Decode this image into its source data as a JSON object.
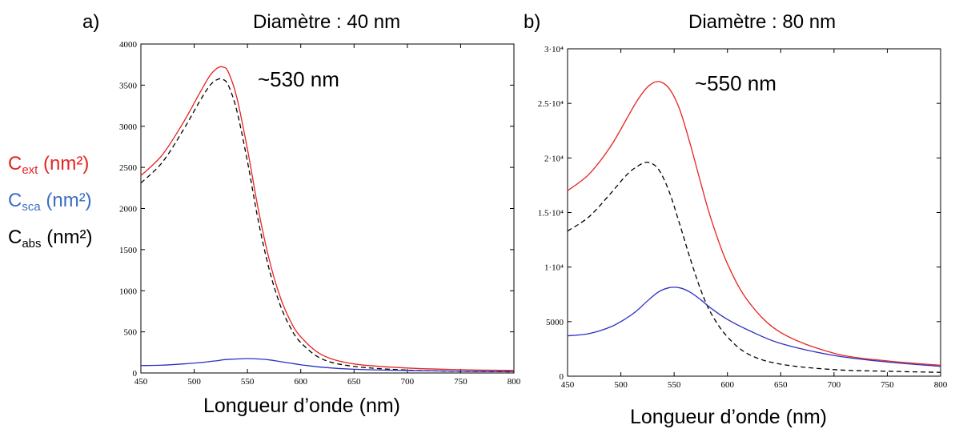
{
  "legend": [
    {
      "symbol": "C",
      "sub": "ext",
      "unit": " (nm²)",
      "color": "#e52421"
    },
    {
      "symbol": "C",
      "sub": "sca",
      "unit": " (nm²)",
      "color": "#3a6fc4"
    },
    {
      "symbol": "C",
      "sub": "abs",
      "unit": " (nm²)",
      "color": "#000000"
    }
  ],
  "panels": {
    "a": {
      "letter": "a)",
      "title": "Diamètre : 40 nm",
      "peak_label": "~530 nm",
      "xlabel": "Longueur d’onde (nm)"
    },
    "b": {
      "letter": "b)",
      "title": "Diamètre : 80 nm",
      "peak_label": "~550 nm",
      "xlabel": "Longueur d’onde (nm)"
    }
  },
  "chart_data": [
    {
      "type": "line",
      "title": "Diamètre : 40 nm",
      "xlabel": "Longueur d’onde (nm)",
      "xlim": [
        450,
        800
      ],
      "ylim": [
        0,
        4000
      ],
      "xticks": [
        450,
        500,
        550,
        600,
        650,
        700,
        750,
        800
      ],
      "yticks": [
        0,
        500,
        1000,
        1500,
        2000,
        2500,
        3000,
        3500,
        4000
      ],
      "ytick_labels": [
        "0",
        "500",
        "1000",
        "1500",
        "2000",
        "2500",
        "3000",
        "3500",
        "4000"
      ],
      "annotation": "~530 nm",
      "x": [
        450,
        470,
        490,
        505,
        515,
        522,
        527,
        532,
        540,
        550,
        560,
        570,
        580,
        590,
        600,
        620,
        650,
        700,
        750,
        800
      ],
      "series": [
        {
          "name": "C_ext",
          "color": "#e52421",
          "dash": "none",
          "values": [
            2400,
            2650,
            3050,
            3400,
            3620,
            3710,
            3720,
            3660,
            3350,
            2720,
            2000,
            1400,
            950,
            640,
            440,
            220,
            110,
            60,
            40,
            30
          ]
        },
        {
          "name": "C_abs",
          "color": "#000000",
          "dash": "6,4",
          "values": [
            2310,
            2560,
            2960,
            3300,
            3500,
            3570,
            3570,
            3500,
            3190,
            2570,
            1860,
            1280,
            850,
            560,
            370,
            170,
            80,
            35,
            20,
            15
          ]
        },
        {
          "name": "C_sca",
          "color": "#2b2fc0",
          "dash": "none",
          "values": [
            90,
            95,
            110,
            125,
            140,
            150,
            160,
            165,
            170,
            175,
            170,
            160,
            140,
            120,
            100,
            70,
            45,
            30,
            22,
            18
          ]
        }
      ]
    },
    {
      "type": "line",
      "title": "Diamètre : 80 nm",
      "xlabel": "Longueur d’onde (nm)",
      "xlim": [
        450,
        800
      ],
      "ylim": [
        0,
        30000
      ],
      "xticks": [
        450,
        500,
        550,
        600,
        650,
        700,
        750,
        800
      ],
      "yticks": [
        0,
        5000,
        10000,
        15000,
        20000,
        25000,
        30000
      ],
      "ytick_labels": [
        "0",
        "5000",
        "1·10⁴",
        "1.5·10⁴",
        "2·10⁴",
        "2.5·10⁴",
        "3·10⁴"
      ],
      "annotation": "~550 nm",
      "x": [
        450,
        470,
        490,
        505,
        515,
        525,
        535,
        545,
        555,
        565,
        575,
        585,
        600,
        620,
        650,
        700,
        750,
        800
      ],
      "series": [
        {
          "name": "C_ext",
          "color": "#e52421",
          "dash": "none",
          "values": [
            17000,
            18500,
            21000,
            23500,
            25200,
            26500,
            27000,
            26400,
            24500,
            21300,
            17700,
            14300,
            10300,
            6800,
            4000,
            2100,
            1400,
            1000
          ]
        },
        {
          "name": "C_abs",
          "color": "#000000",
          "dash": "6,4",
          "values": [
            13300,
            14600,
            16700,
            18400,
            19200,
            19600,
            19000,
            17000,
            14000,
            10800,
            7900,
            5700,
            3600,
            2000,
            1100,
            600,
            450,
            350
          ]
        },
        {
          "name": "C_sca",
          "color": "#2b2fc0",
          "dash": "none",
          "values": [
            3700,
            3900,
            4500,
            5300,
            6000,
            6900,
            7700,
            8100,
            8100,
            7700,
            7000,
            6200,
            5200,
            4200,
            3000,
            1900,
            1300,
            900
          ]
        }
      ]
    }
  ]
}
